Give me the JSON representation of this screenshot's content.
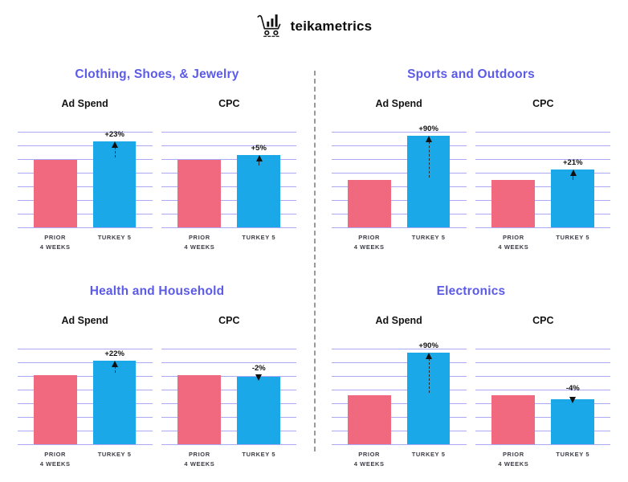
{
  "header": {
    "brand": "teikametrics",
    "logo_icon": "shopping-cart-barchart-icon"
  },
  "bar_labels": {
    "prior_line1": "PRIOR",
    "prior_line2": "4 WEEKS",
    "turkey": "TURKEY 5"
  },
  "colors": {
    "prior_bar": "#F0697E",
    "turkey_bar": "#1BA8E8",
    "section_title": "#5B5BE8",
    "gridline": "#ACA9F4",
    "divider": "#999999",
    "text": "#111111"
  },
  "chart_data": {
    "type": "bar",
    "categories": [
      "PRIOR 4 WEEKS",
      "TURKEY 5"
    ],
    "legend": "none",
    "grid": "horizontal",
    "note": "Paired bar charts comparing Prior 4 Weeks vs Turkey 5; bar_heights_pct are relative bar heights as percent of plot height, change is the labeled percent change on the Turkey 5 bar",
    "sections": [
      {
        "title": "Clothing, Shoes, & Jewelry",
        "charts": [
          {
            "metric": "Ad Spend",
            "change": "+23%",
            "direction": "up",
            "bar_heights_pct": [
              70,
              89
            ]
          },
          {
            "metric": "CPC",
            "change": "+5%",
            "direction": "up",
            "bar_heights_pct": [
              70,
              75
            ]
          }
        ]
      },
      {
        "title": "Sports and Outdoors",
        "charts": [
          {
            "metric": "Ad Spend",
            "change": "+90%",
            "direction": "up",
            "bar_heights_pct": [
              49,
              95
            ]
          },
          {
            "metric": "CPC",
            "change": "+21%",
            "direction": "up",
            "bar_heights_pct": [
              49,
              60
            ]
          }
        ]
      },
      {
        "title": "Health and Household",
        "charts": [
          {
            "metric": "Ad Spend",
            "change": "+22%",
            "direction": "up",
            "bar_heights_pct": [
              72,
              87
            ]
          },
          {
            "metric": "CPC",
            "change": "-2%",
            "direction": "down",
            "bar_heights_pct": [
              72,
              70
            ]
          }
        ]
      },
      {
        "title": "Electronics",
        "charts": [
          {
            "metric": "Ad Spend",
            "change": "+90%",
            "direction": "up",
            "bar_heights_pct": [
              51,
              95
            ]
          },
          {
            "metric": "CPC",
            "change": "-4%",
            "direction": "down",
            "bar_heights_pct": [
              51,
              47
            ]
          }
        ]
      }
    ]
  }
}
